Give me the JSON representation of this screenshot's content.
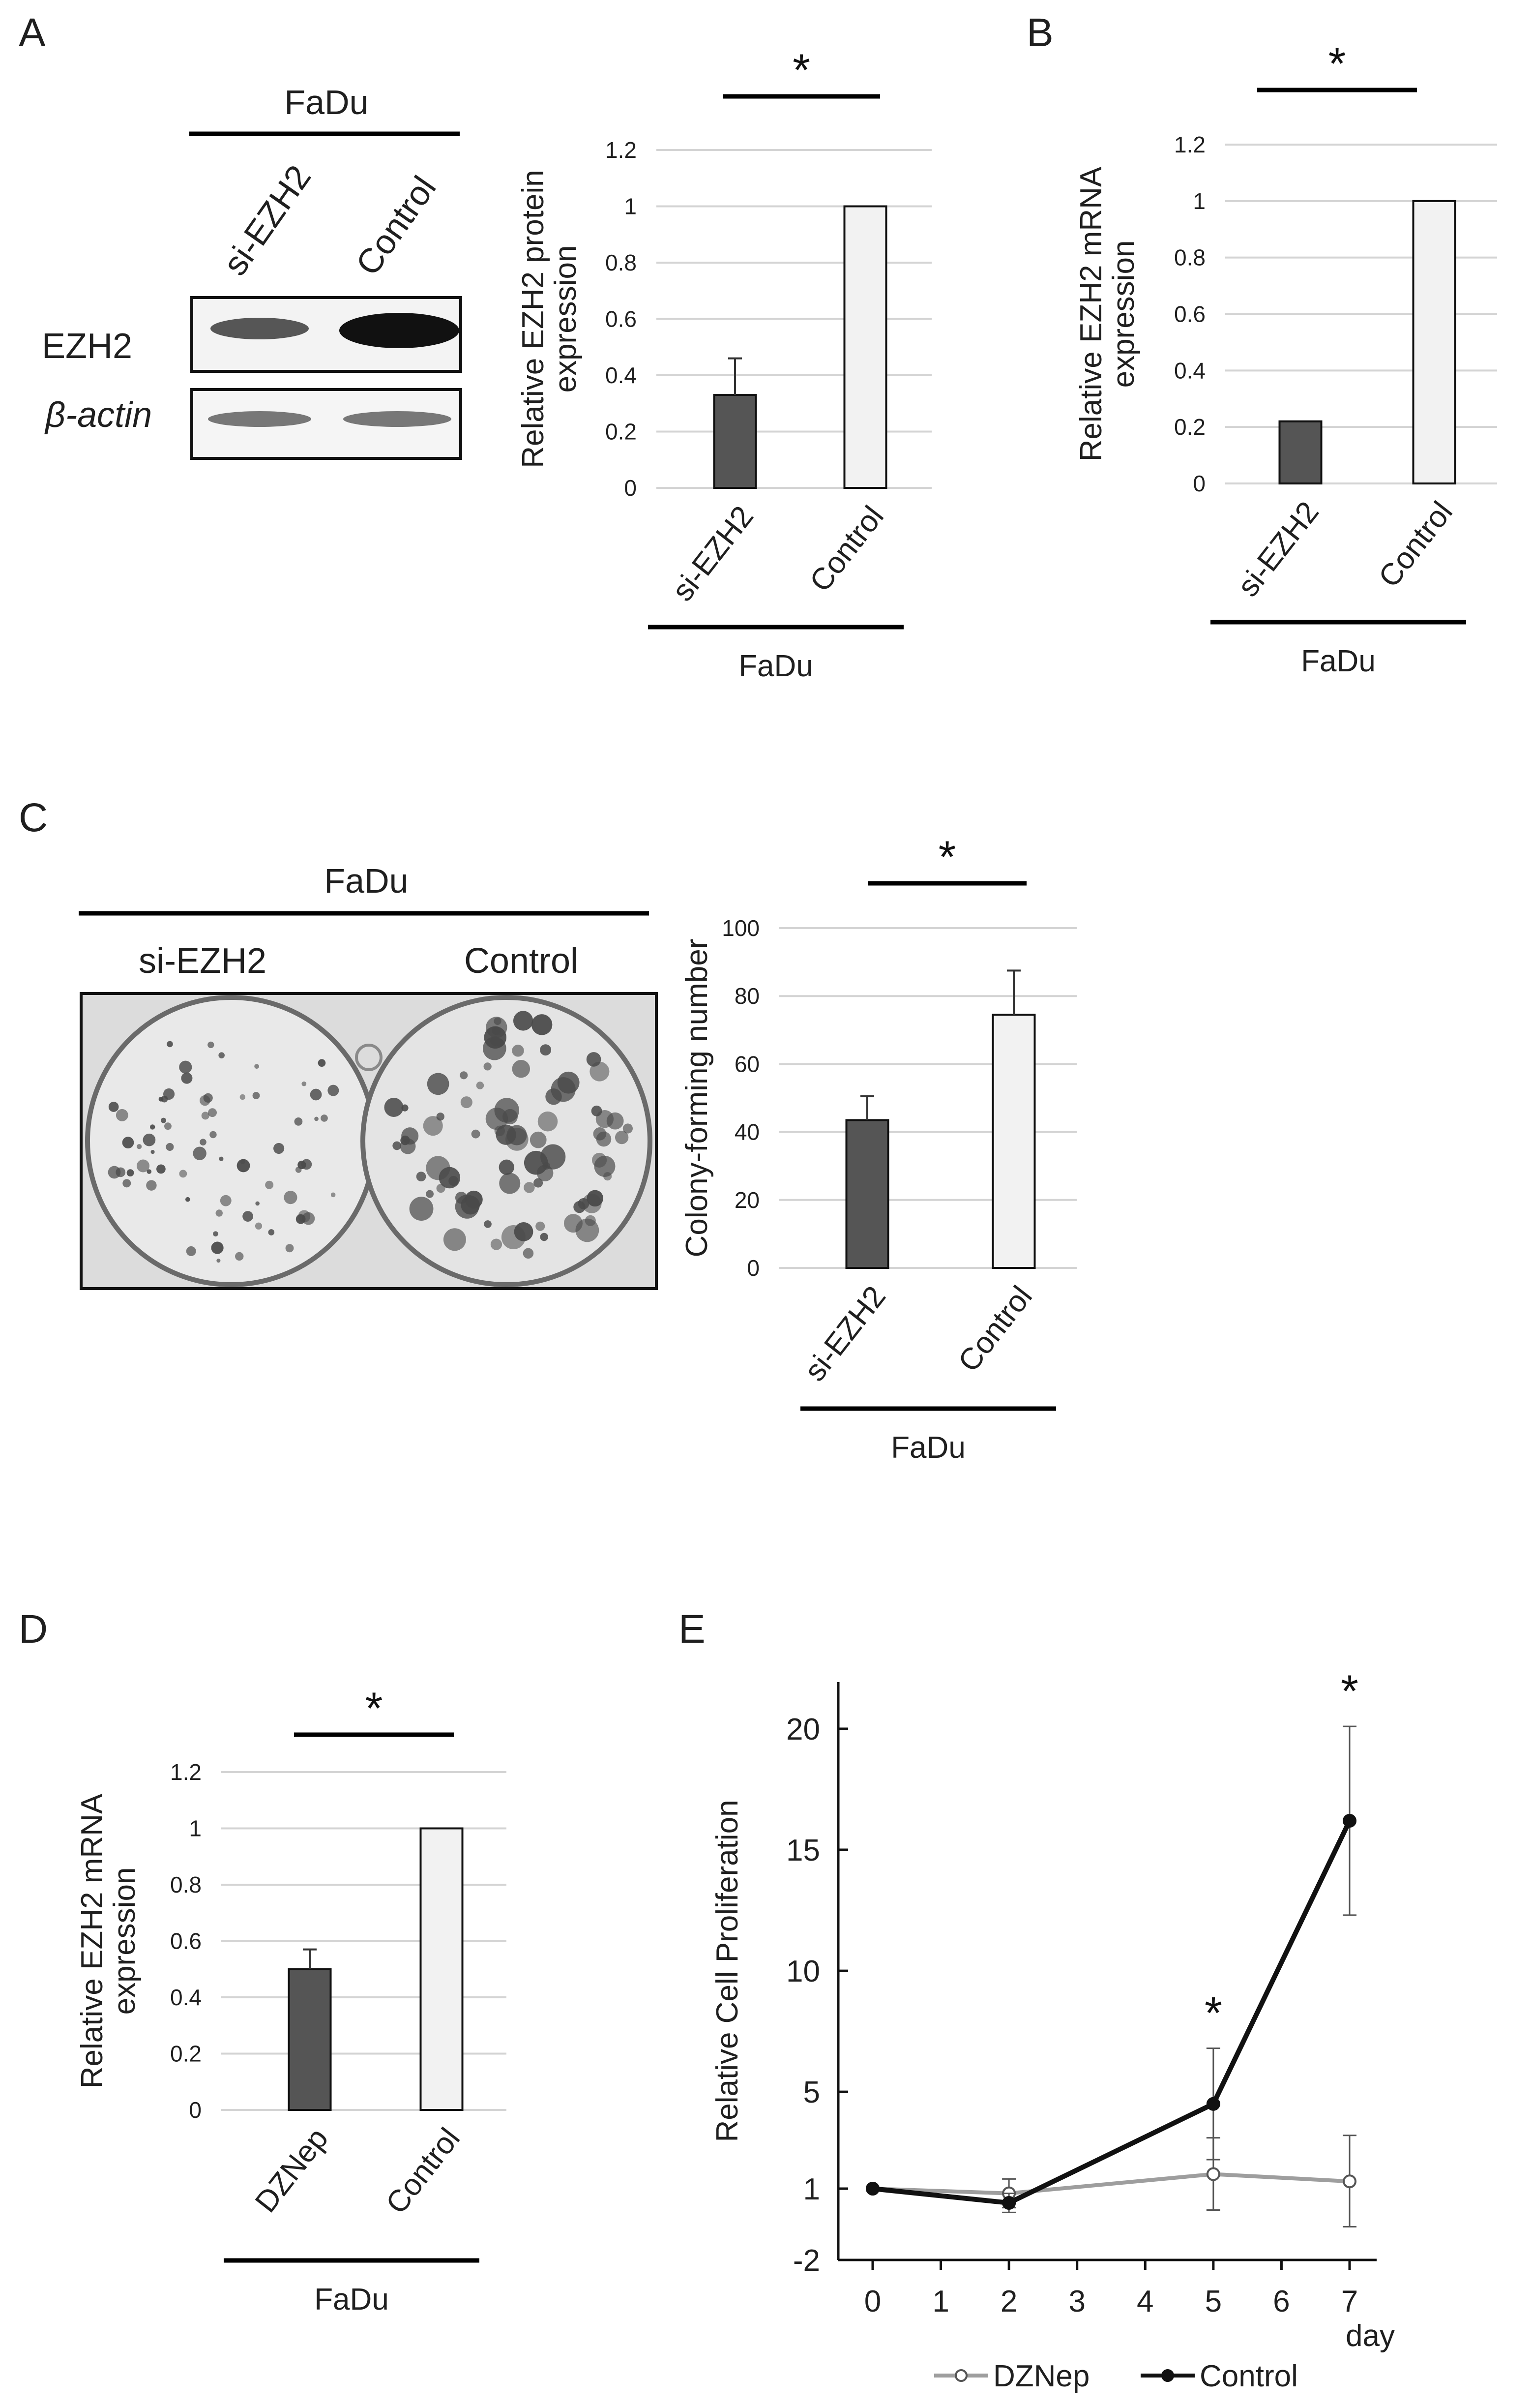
{
  "panels": {
    "A": {
      "letter": "A",
      "blot": {
        "cell_line": "FaDu",
        "lanes": [
          "si-EZH2",
          "Control"
        ],
        "rows": [
          "EZH2",
          "β-actin"
        ]
      }
    },
    "B": {
      "letter": "B"
    },
    "C": {
      "letter": "C",
      "plate": {
        "cell_line": "FaDu",
        "labels": [
          "si-EZH2",
          "Control"
        ]
      }
    },
    "D": {
      "letter": "D"
    },
    "E": {
      "letter": "E"
    }
  },
  "chart_data": [
    {
      "id": "A-chart",
      "type": "bar",
      "categories": [
        "si-EZH2",
        "Control"
      ],
      "values": [
        0.33,
        1.0
      ],
      "errors": [
        0.13,
        0.0
      ],
      "colors": [
        "#555555",
        "#f2f2f2"
      ],
      "ylabel": "Relative EZH2 protein expression",
      "group_label": "FaDu",
      "ylim": [
        0,
        1.2
      ],
      "yticks": [
        "0",
        "0.2",
        "0.4",
        "0.6",
        "0.8",
        "1",
        "1.2"
      ],
      "significance": "*",
      "grid": true
    },
    {
      "id": "B-chart",
      "type": "bar",
      "categories": [
        "si-EZH2",
        "Control"
      ],
      "values": [
        0.22,
        1.0
      ],
      "errors": [
        0.0,
        0.0
      ],
      "colors": [
        "#555555",
        "#f2f2f2"
      ],
      "ylabel": "Relative EZH2 mRNA expression",
      "group_label": "FaDu",
      "ylim": [
        0,
        1.2
      ],
      "yticks": [
        "0",
        "0.2",
        "0.4",
        "0.6",
        "0.8",
        "1",
        "1.2"
      ],
      "significance": "*",
      "grid": true
    },
    {
      "id": "C-chart",
      "type": "bar",
      "categories": [
        "si-EZH2",
        "Control"
      ],
      "values": [
        43.5,
        74.5
      ],
      "errors": [
        7,
        13
      ],
      "colors": [
        "#555555",
        "#f2f2f2"
      ],
      "ylabel": "Colony-forming number",
      "group_label": "FaDu",
      "ylim": [
        0,
        100
      ],
      "yticks": [
        "0",
        "20",
        "40",
        "60",
        "80",
        "100"
      ],
      "significance": "*",
      "grid": true
    },
    {
      "id": "D-chart",
      "type": "bar",
      "categories": [
        "DZNep",
        "Control"
      ],
      "values": [
        0.5,
        1.0
      ],
      "errors": [
        0.07,
        0.0
      ],
      "colors": [
        "#555555",
        "#f2f2f2"
      ],
      "ylabel": "Relative EZH2 mRNA expression",
      "group_label": "FaDu",
      "ylim": [
        0,
        1.2
      ],
      "yticks": [
        "0",
        "0.2",
        "0.4",
        "0.6",
        "0.8",
        "1",
        "1.2"
      ],
      "significance": "*",
      "grid": true
    },
    {
      "id": "E-chart",
      "type": "line",
      "ylabel": "Relative Cell Proliferation",
      "xlabel": "day",
      "xticks": [
        "0",
        "1",
        "2",
        "3",
        "4",
        "5",
        "6",
        "7"
      ],
      "yticks": [
        "-2",
        "1",
        "5",
        "10",
        "15",
        "20"
      ],
      "ylim": [
        -2,
        22
      ],
      "xlim": [
        0,
        7
      ],
      "grid": false,
      "legend_position": "bottom",
      "series": [
        {
          "name": "DZNep",
          "color": "#9e9e9e",
          "marker": "open-circle",
          "x": [
            0,
            2,
            5,
            7
          ],
          "y": [
            1.0,
            0.8,
            1.6,
            1.3
          ],
          "err": [
            0.0,
            0.6,
            1.5,
            1.9
          ]
        },
        {
          "name": "Control",
          "color": "#111111",
          "marker": "filled-circle",
          "x": [
            0,
            2,
            5,
            7
          ],
          "y": [
            1.0,
            0.4,
            4.5,
            16.2
          ],
          "err": [
            0.0,
            0.4,
            2.3,
            3.9
          ]
        }
      ],
      "significance": [
        {
          "x": 5,
          "label": "*"
        },
        {
          "x": 7,
          "label": "*"
        }
      ]
    }
  ]
}
